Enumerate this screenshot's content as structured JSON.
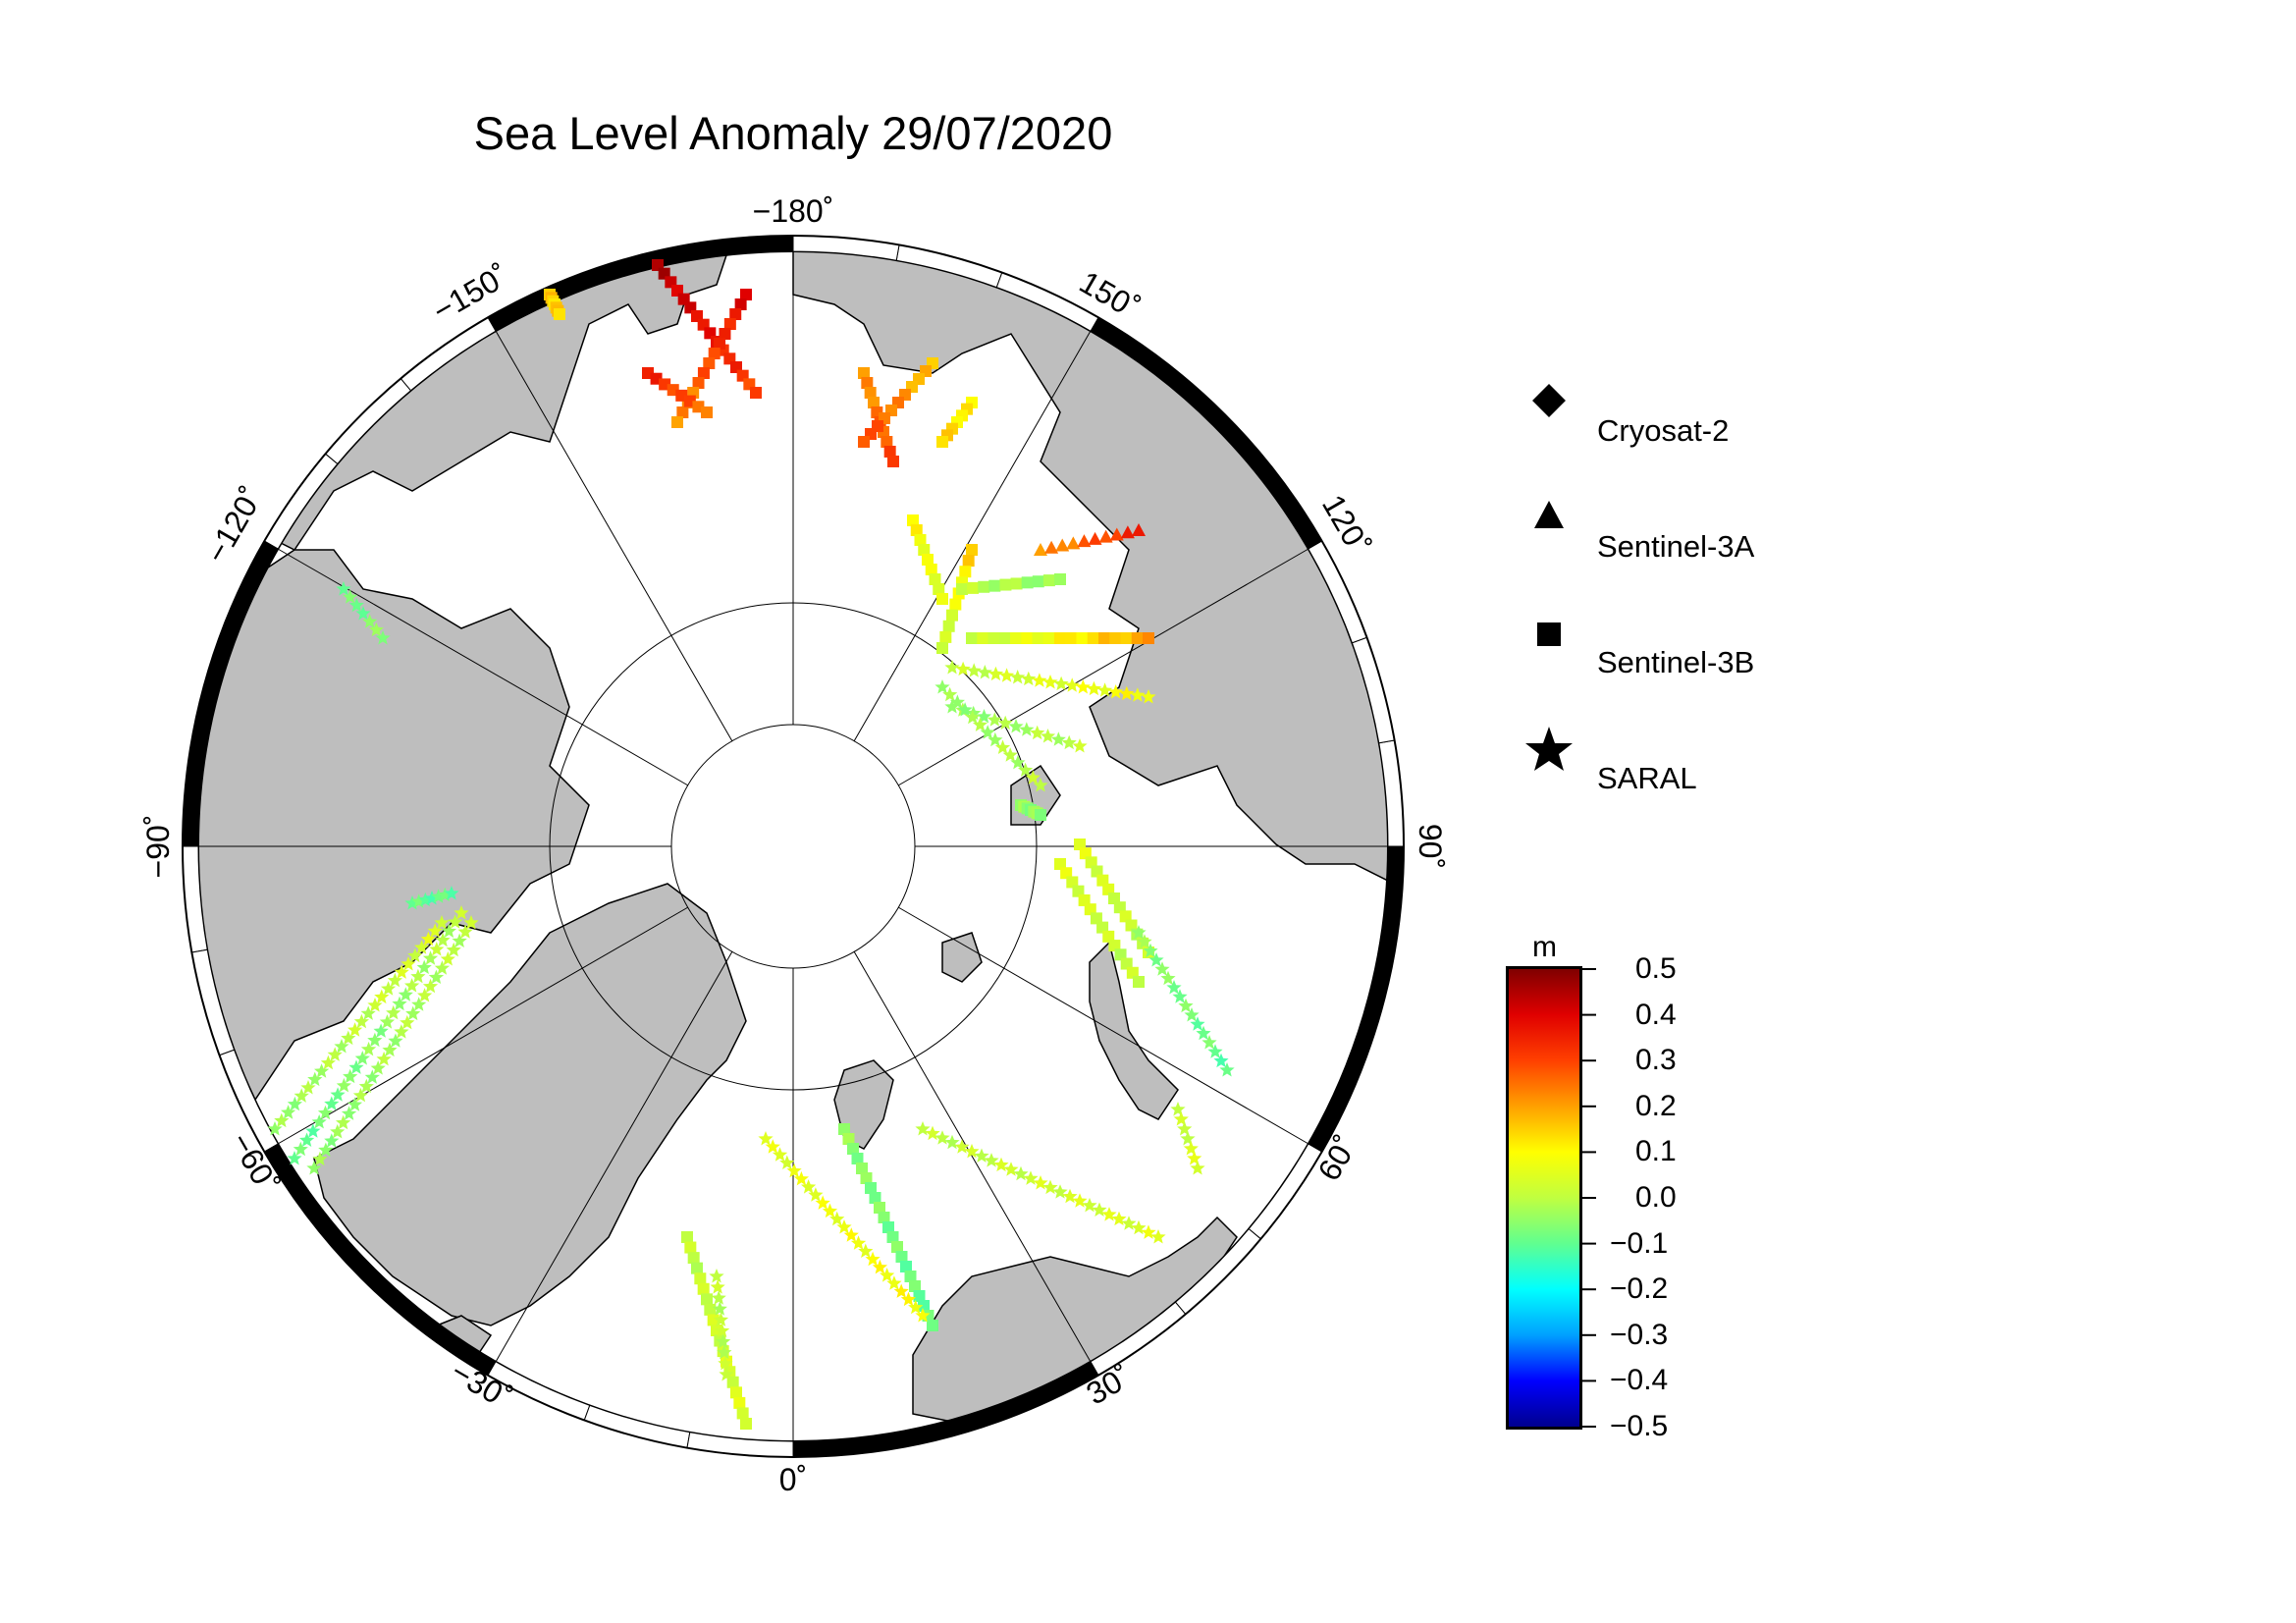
{
  "title": "Sea Level Anomaly 29/07/2020",
  "map": {
    "projection": "north polar stereographic",
    "longitude_labels": [
      "−180˚",
      "150˚",
      "120˚",
      "90˚",
      "60˚",
      "30˚",
      "0˚",
      "−30˚",
      "−60˚",
      "−90˚",
      "−120˚",
      "−150˚"
    ],
    "land_color": "#bebebe",
    "ocean_color": "#ffffff"
  },
  "legend": {
    "items": [
      {
        "label": "Cryosat-2",
        "symbol": "diamond-icon"
      },
      {
        "label": "Sentinel-3A",
        "symbol": "triangle-icon"
      },
      {
        "label": "Sentinel-3B",
        "symbol": "square-icon"
      },
      {
        "label": "SARAL",
        "symbol": "star-icon"
      }
    ]
  },
  "colorbar": {
    "unit": "m",
    "ticks": [
      "0.5",
      "0.4",
      "0.3",
      "0.2",
      "0.1",
      "0.0",
      "−0.1",
      "−0.2",
      "−0.3",
      "−0.4",
      "−0.5"
    ],
    "range": [
      -0.5,
      0.5
    ],
    "colormap": [
      "#00008f",
      "#0000ff",
      "#00a0ff",
      "#00ffff",
      "#60ff90",
      "#c0ff40",
      "#ffff00",
      "#ffa000",
      "#ff4000",
      "#e00000",
      "#800000"
    ]
  }
}
